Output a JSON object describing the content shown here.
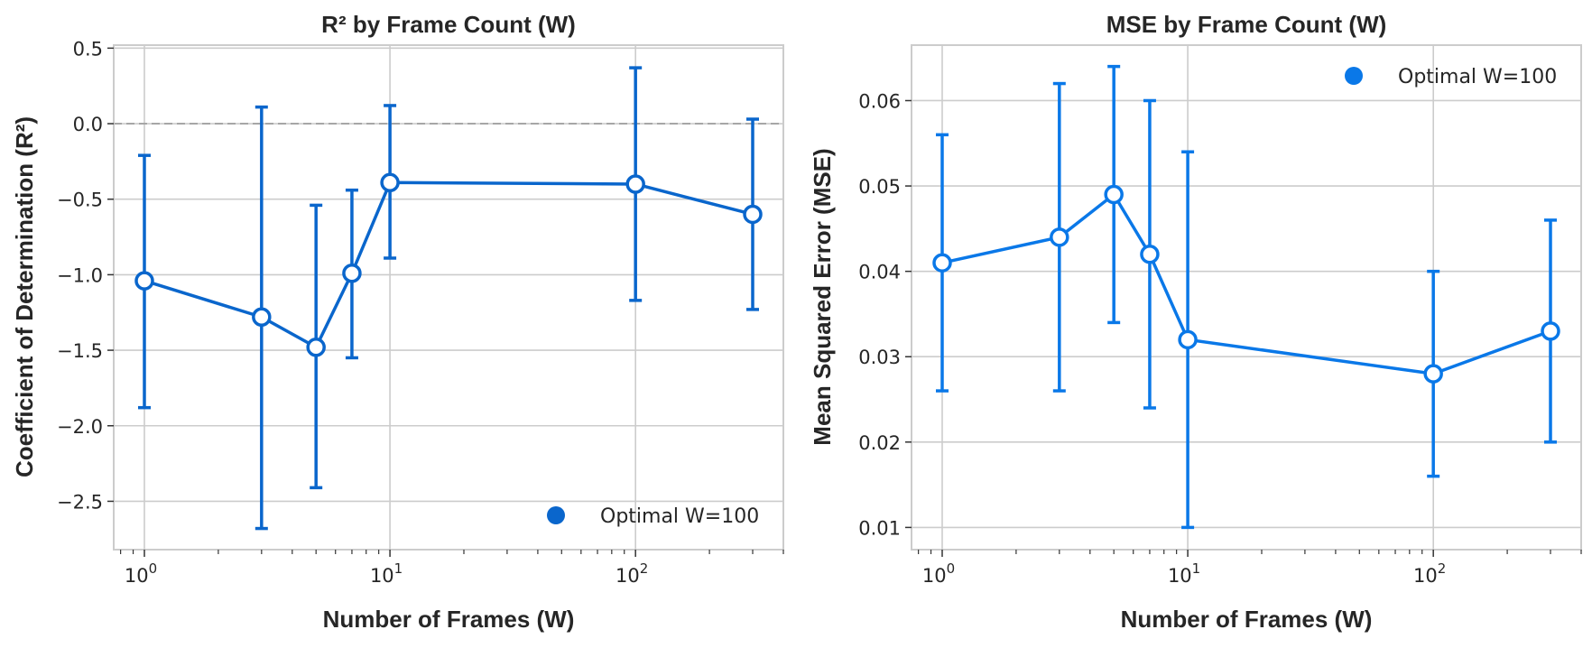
{
  "chart_data": [
    {
      "type": "line",
      "title": "R² by Frame Count (W)",
      "xlabel": "Number of Frames (W)",
      "ylabel": "Coefficient of Determination (R²)",
      "xscale": "log",
      "xlim": [
        0.75,
        400
      ],
      "ylim": [
        -2.82,
        0.52
      ],
      "yticks": [
        0.5,
        0.0,
        -0.5,
        -1.0,
        -1.5,
        -2.0,
        -2.5
      ],
      "ytick_labels": [
        "0.5",
        "0.0",
        "−0.5",
        "−1.0",
        "−1.5",
        "−2.0",
        "−2.5"
      ],
      "xticks": [
        {
          "value": 1,
          "base": "10",
          "exp": "0"
        },
        {
          "value": 10,
          "base": "10",
          "exp": "1"
        },
        {
          "value": 100,
          "base": "10",
          "exp": "2"
        }
      ],
      "reference_line": 0,
      "grid": true,
      "color": "#0A66CC",
      "x": [
        1,
        3,
        5,
        7,
        10,
        100,
        300
      ],
      "y": [
        -1.04,
        -1.28,
        -1.48,
        -0.99,
        -0.39,
        -0.4,
        -0.6
      ],
      "err_low": [
        -1.88,
        -2.68,
        -2.41,
        -1.55,
        -0.89,
        -1.17,
        -1.23
      ],
      "err_high": [
        -0.21,
        0.11,
        -0.54,
        -0.44,
        0.12,
        0.37,
        0.03
      ],
      "legend": {
        "label": "Optimal W=100",
        "position": "lower-right"
      }
    },
    {
      "type": "line",
      "title": "MSE by Frame Count (W)",
      "xlabel": "Number of Frames (W)",
      "ylabel": "Mean Squared Error (MSE)",
      "xscale": "log",
      "xlim": [
        0.75,
        400
      ],
      "ylim": [
        0.0074,
        0.0665
      ],
      "yticks": [
        0.01,
        0.02,
        0.03,
        0.04,
        0.05,
        0.06
      ],
      "ytick_labels": [
        "0.01",
        "0.02",
        "0.03",
        "0.04",
        "0.05",
        "0.06"
      ],
      "xticks": [
        {
          "value": 1,
          "base": "10",
          "exp": "0"
        },
        {
          "value": 10,
          "base": "10",
          "exp": "1"
        },
        {
          "value": 100,
          "base": "10",
          "exp": "2"
        }
      ],
      "grid": true,
      "color": "#0A78E8",
      "x": [
        1,
        3,
        5,
        7,
        10,
        100,
        300
      ],
      "y": [
        0.041,
        0.044,
        0.049,
        0.042,
        0.032,
        0.028,
        0.033
      ],
      "err_low": [
        0.026,
        0.026,
        0.034,
        0.024,
        0.01,
        0.016,
        0.02
      ],
      "err_high": [
        0.056,
        0.062,
        0.064,
        0.06,
        0.054,
        0.04,
        0.046
      ],
      "legend": {
        "label": "Optimal W=100",
        "position": "upper-right"
      }
    }
  ]
}
